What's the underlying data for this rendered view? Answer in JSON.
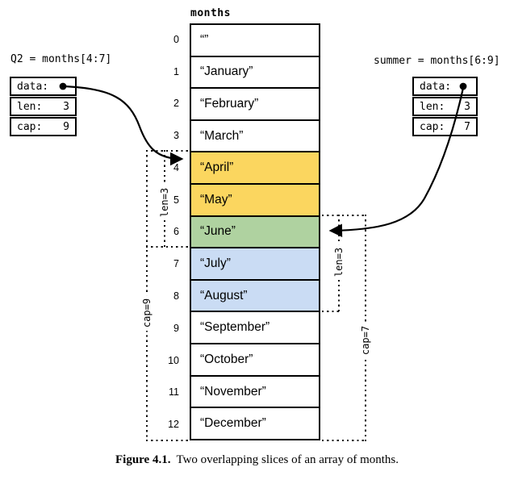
{
  "figure": {
    "array_label": "months",
    "caption_label": "Figure 4.1.",
    "caption_text": "Two overlapping slices of an array of months."
  },
  "array": {
    "cells": [
      {
        "index": "0",
        "value": "“”",
        "highlight": "none"
      },
      {
        "index": "1",
        "value": "“January”",
        "highlight": "none"
      },
      {
        "index": "2",
        "value": "“February”",
        "highlight": "none"
      },
      {
        "index": "3",
        "value": "“March”",
        "highlight": "none"
      },
      {
        "index": "4",
        "value": "“April”",
        "highlight": "q2"
      },
      {
        "index": "5",
        "value": "“May”",
        "highlight": "q2"
      },
      {
        "index": "6",
        "value": "“June”",
        "highlight": "overlap"
      },
      {
        "index": "7",
        "value": "“July”",
        "highlight": "summer"
      },
      {
        "index": "8",
        "value": "“August”",
        "highlight": "summer"
      },
      {
        "index": "9",
        "value": "“September”",
        "highlight": "none"
      },
      {
        "index": "10",
        "value": "“October”",
        "highlight": "none"
      },
      {
        "index": "11",
        "value": "“November”",
        "highlight": "none"
      },
      {
        "index": "12",
        "value": "“December”",
        "highlight": "none"
      }
    ]
  },
  "slices": [
    {
      "label": "Q2 = months[4:7]",
      "fields": [
        {
          "name": "data:",
          "value": ""
        },
        {
          "name": "len:",
          "value": "3"
        },
        {
          "name": "cap:",
          "value": "9"
        }
      ]
    },
    {
      "label": "summer = months[6:9]",
      "fields": [
        {
          "name": "data:",
          "value": ""
        },
        {
          "name": "len:",
          "value": "3"
        },
        {
          "name": "cap:",
          "value": "7"
        }
      ]
    }
  ],
  "brackets": {
    "left_len": "len=3",
    "left_cap": "cap=9",
    "right_len": "len=3",
    "right_cap": "cap=7"
  },
  "colors": {
    "q2": "#FBD65F",
    "overlap": "#AFD2A0",
    "summer": "#CADCF4",
    "none": "#FFFFFF"
  }
}
